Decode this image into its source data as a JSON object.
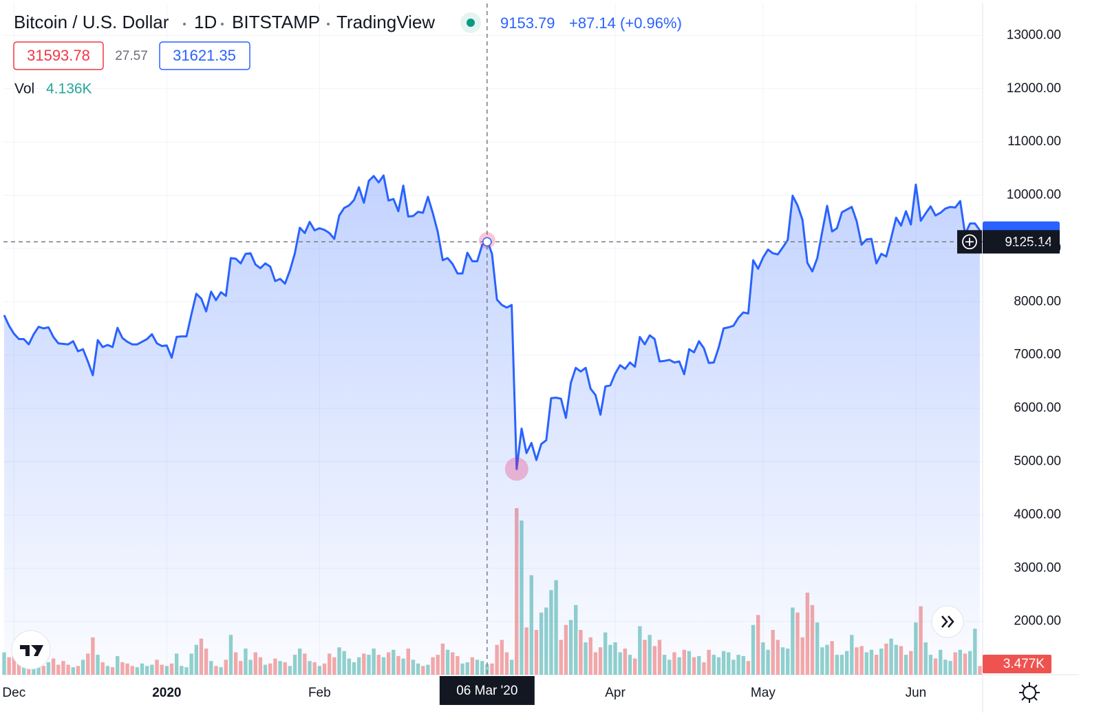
{
  "chart_data": {
    "type": "area",
    "title": "Bitcoin / U.S. Dollar",
    "interval": "1D",
    "exchange": "BITSTAMP",
    "source": "TradingView",
    "change_label": "+87.14 (+0.96%)",
    "quote": {
      "bid": "31593.78",
      "spread": "27.57",
      "ask": "31621.35"
    },
    "categories": [
      null,
      null,
      "Dec",
      null,
      null,
      null,
      null,
      null,
      null,
      null,
      null,
      null,
      null,
      null,
      null,
      null,
      null,
      null,
      null,
      null,
      null,
      null,
      null,
      null,
      null,
      null,
      null,
      null,
      null,
      null,
      null,
      null,
      null,
      "2020",
      null,
      null,
      null,
      null,
      null,
      null,
      null,
      null,
      null,
      null,
      null,
      null,
      null,
      null,
      null,
      null,
      null,
      null,
      null,
      null,
      null,
      null,
      null,
      null,
      null,
      null,
      null,
      null,
      null,
      null,
      "Feb",
      null,
      null,
      null,
      null,
      null,
      null,
      null,
      null,
      null,
      null,
      null,
      null,
      null,
      null,
      null,
      null,
      null,
      null,
      null,
      null,
      null,
      null,
      null,
      null,
      null,
      null,
      null,
      null,
      null,
      null,
      null,
      null,
      null,
      null,
      null,
      null,
      null,
      null,
      null,
      null,
      null,
      null,
      null,
      null,
      null,
      null,
      null,
      null,
      null,
      null,
      null,
      null,
      null,
      null,
      null,
      null,
      null,
      null,
      null,
      "Apr",
      null,
      null,
      null,
      null,
      null,
      null,
      null,
      null,
      null,
      null,
      null,
      null,
      null,
      null,
      null,
      null,
      null,
      null,
      null,
      null,
      null,
      null,
      null,
      null,
      null,
      null,
      null,
      null,
      null,
      "May",
      null,
      null,
      null,
      null,
      null,
      null,
      null,
      null,
      null,
      null,
      null,
      null,
      null,
      null,
      null,
      null,
      null,
      null,
      null,
      null,
      null,
      null,
      null,
      null,
      null,
      null,
      null,
      null,
      null,
      null,
      "Jun",
      null,
      null,
      null,
      null,
      null,
      null,
      null,
      null,
      null,
      null,
      null,
      null,
      null
    ],
    "series": [
      {
        "name": "Bitcoin / U.S. Dollar",
        "color": "#2962ff",
        "values": [
          7750,
          7550,
          7400,
          7300,
          7300,
          7200,
          7390,
          7530,
          7500,
          7520,
          7340,
          7220,
          7210,
          7200,
          7260,
          7070,
          7110,
          6880,
          6620,
          7280,
          7150,
          7190,
          7150,
          7510,
          7320,
          7250,
          7200,
          7200,
          7250,
          7300,
          7390,
          7220,
          7170,
          7180,
          6950,
          7340,
          7350,
          7350,
          7760,
          8150,
          8060,
          7820,
          8190,
          8030,
          8180,
          8110,
          8820,
          8810,
          8720,
          8900,
          8910,
          8700,
          8630,
          8720,
          8660,
          8390,
          8430,
          8340,
          8590,
          8910,
          9390,
          9290,
          9500,
          9340,
          9380,
          9350,
          9290,
          9180,
          9620,
          9760,
          9810,
          9910,
          10150,
          9860,
          10270,
          10360,
          10240,
          10370,
          9900,
          9930,
          9700,
          10180,
          9600,
          9610,
          9690,
          9670,
          9970,
          9660,
          9310,
          8780,
          8820,
          8710,
          8530,
          8530,
          8920,
          8760,
          8760,
          9066.65,
          9153.79,
          8900,
          8040,
          7940,
          7890,
          7940,
          4860,
          5620,
          5160,
          5350,
          5030,
          5330,
          5400,
          6190,
          6200,
          6180,
          5820,
          6480,
          6760,
          6690,
          6760,
          6370,
          6250,
          5880,
          6410,
          6430,
          6650,
          6810,
          6740,
          6860,
          6780,
          7340,
          7200,
          7370,
          7300,
          6880,
          6890,
          6910,
          6860,
          6880,
          6640,
          7110,
          7050,
          7260,
          7130,
          6850,
          6860,
          7140,
          7500,
          7520,
          7550,
          7700,
          7800,
          7780,
          8780,
          8620,
          8830,
          8980,
          8910,
          8890,
          9020,
          9160,
          9990,
          9810,
          9540,
          8730,
          8570,
          8820,
          9310,
          9800,
          9320,
          9380,
          9680,
          9730,
          9780,
          9510,
          9070,
          9170,
          9180,
          8720,
          8900,
          8850,
          9200,
          9580,
          9430,
          9700,
          9450,
          10200,
          9520,
          9660,
          9790,
          9620,
          9670,
          9750,
          9780,
          9770,
          9890,
          9270,
          9470,
          9470,
          9340
        ]
      }
    ],
    "volume": {
      "name": "Vol",
      "up_color": "rgba(38,166,154,0.5)",
      "down_color": "rgba(239,83,80,0.5)",
      "label_color": "#ef5350",
      "ylim": [
        0,
        270000
      ],
      "values": [
        9000,
        7000,
        8000,
        6000,
        5500,
        11000,
        6000,
        4500,
        3500,
        5000,
        6500,
        4000,
        5500,
        4000,
        3000,
        3500,
        6000,
        8500,
        15000,
        8000,
        5000,
        3500,
        3000,
        7500,
        5000,
        4500,
        3500,
        3000,
        4500,
        3500,
        4000,
        6000,
        4000,
        3500,
        4500,
        8500,
        3500,
        3000,
        8500,
        12000,
        14500,
        10500,
        5500,
        3500,
        3000,
        6000,
        16000,
        9000,
        5500,
        10500,
        6000,
        9000,
        7000,
        4000,
        4500,
        6500,
        5500,
        5000,
        3500,
        8000,
        10500,
        8500,
        5500,
        5000,
        3500,
        4500,
        8500,
        7000,
        11000,
        9500,
        6500,
        5000,
        7000,
        8500,
        8000,
        10500,
        8000,
        7000,
        9000,
        10000,
        7500,
        6500,
        10500,
        6000,
        4500,
        3500,
        4000,
        7000,
        8000,
        12500,
        10000,
        9000,
        7500,
        4500,
        5000,
        7000,
        6000,
        5500,
        4136,
        4500,
        12000,
        14000,
        9000,
        6000,
        67000,
        62000,
        19000,
        40000,
        18000,
        25000,
        27000,
        34000,
        38000,
        14000,
        20000,
        22000,
        28000,
        18000,
        13000,
        15000,
        9000,
        11000,
        17000,
        12000,
        13000,
        9000,
        10500,
        8000,
        6500,
        19500,
        14000,
        16000,
        11500,
        14000,
        8000,
        6000,
        9000,
        7000,
        10000,
        9500,
        7000,
        7500,
        5000,
        10000,
        8000,
        7000,
        9500,
        9000,
        6000,
        8000,
        7500,
        5500,
        20000,
        24000,
        13000,
        10000,
        18000,
        14000,
        11000,
        10500,
        27000,
        25000,
        15000,
        33000,
        28000,
        21000,
        11000,
        12000,
        13500,
        8000,
        8000,
        9500,
        16000,
        11000,
        11500,
        9000,
        10000,
        8000,
        10500,
        12500,
        14500,
        12000,
        11500,
        8000,
        9500,
        21000,
        27500,
        13000,
        8000,
        6500,
        10000,
        6000,
        5500,
        9000,
        10000,
        8500,
        9500,
        18500,
        3477
      ],
      "value_labels": [
        null,
        null,
        null,
        null,
        null,
        null,
        null,
        null,
        null,
        null,
        null,
        null,
        null,
        null,
        null,
        null,
        null,
        null,
        null,
        null,
        null,
        null,
        null,
        null,
        null,
        null,
        null,
        null,
        null,
        null,
        null,
        null,
        null,
        null,
        null,
        null,
        null,
        null,
        null,
        null,
        null,
        null,
        null,
        null,
        null,
        null,
        null,
        null,
        null,
        null,
        null,
        null,
        null,
        null,
        null,
        null,
        null,
        null,
        null,
        null,
        null,
        null,
        null,
        null,
        null,
        null,
        null,
        null,
        null,
        null,
        null,
        null,
        null,
        null,
        null,
        null,
        null,
        null,
        null,
        null,
        null,
        null,
        null,
        null,
        null,
        null,
        null,
        null,
        null,
        null,
        null,
        null,
        null,
        null,
        null,
        null,
        null,
        null,
        "4.136K",
        null,
        null,
        null,
        null,
        null,
        null,
        null,
        null,
        null,
        null,
        null,
        null,
        null,
        null,
        null,
        null,
        null,
        null,
        null,
        null,
        null,
        null,
        null,
        null,
        null,
        null,
        null,
        null,
        null,
        null,
        null,
        null,
        null,
        null,
        null,
        null,
        null,
        null,
        null,
        null,
        null,
        null,
        null,
        null,
        null,
        null,
        null,
        null,
        null,
        null,
        null,
        null,
        null,
        null,
        null,
        null,
        null,
        null,
        null,
        null,
        null,
        null,
        null,
        null,
        null,
        null,
        null,
        null,
        null,
        null,
        null,
        null,
        null,
        null,
        null,
        null,
        null,
        null,
        null,
        null,
        null,
        null,
        null,
        null,
        null,
        null,
        null,
        null,
        null,
        null,
        null,
        null,
        null,
        null,
        null,
        null,
        null,
        null,
        null,
        "3.477K"
      ]
    },
    "crosshair": {
      "index": 98,
      "label": "06 Mar '20",
      "y": 9125.14
    },
    "ylim": [
      1000,
      13600
    ],
    "yticks": [
      {
        "value": 2000,
        "label": "2000.00"
      },
      {
        "value": 3000,
        "label": "3000.00"
      },
      {
        "value": 4000,
        "label": "4000.00"
      },
      {
        "value": 5000,
        "label": "5000.00"
      },
      {
        "value": 6000,
        "label": "6000.00"
      },
      {
        "value": 7000,
        "label": "7000.00"
      },
      {
        "value": 8000,
        "label": "8000.00"
      },
      {
        "value": 9000,
        "label": "9000.00"
      },
      {
        "value": 10000,
        "label": "10000.00"
      },
      {
        "value": 11000,
        "label": "11000.00"
      },
      {
        "value": 12000,
        "label": "12000.00"
      },
      {
        "value": 13000,
        "label": "13000.00"
      }
    ],
    "grid": true
  }
}
